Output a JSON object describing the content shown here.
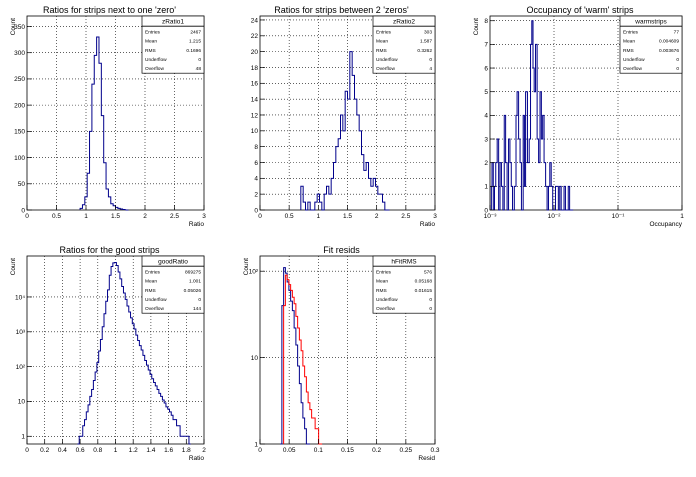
{
  "chart_data": [
    {
      "id": "p1",
      "type": "histogram",
      "title": "Ratios for strips next to one 'zero'",
      "xlabel": "Ratio",
      "ylabel": "Count",
      "xlim": [
        0,
        3
      ],
      "ylim": [
        0,
        370
      ],
      "xticks": [
        0,
        0.5,
        1,
        1.5,
        2,
        2.5,
        3
      ],
      "xticklabels": [
        "0",
        "0.5",
        "1",
        "1.5",
        "2",
        "2.5",
        "3"
      ],
      "yticks": [
        0,
        50,
        100,
        150,
        200,
        250,
        300,
        350
      ],
      "yticklabels": [
        "0",
        "50",
        "100",
        "150",
        "200",
        "250",
        "300",
        "350"
      ],
      "grid": true,
      "stats": {
        "name": "zRatio1",
        "rows": [
          {
            "label": "Entries",
            "value": "2467"
          },
          {
            "label": "Mean",
            "value": "1.215"
          },
          {
            "label": "RMS",
            "value": "0.1696"
          },
          {
            "label": "Underflow",
            "value": "0"
          },
          {
            "label": "Overflow",
            "value": "48"
          }
        ]
      },
      "series": [
        {
          "name": "zRatio1",
          "color": "#00008b",
          "x": [
            0.92,
            0.96,
            1.0,
            1.04,
            1.08,
            1.12,
            1.16,
            1.2,
            1.24,
            1.28,
            1.32,
            1.36,
            1.4,
            1.44,
            1.48,
            1.52,
            1.56,
            1.6,
            1.64,
            1.7
          ],
          "values": [
            3,
            10,
            25,
            70,
            150,
            240,
            295,
            330,
            280,
            180,
            90,
            40,
            25,
            12,
            8,
            5,
            3,
            2,
            1,
            0
          ]
        }
      ]
    },
    {
      "id": "p2",
      "type": "histogram",
      "title": "Ratios for strips between 2 'zeros'",
      "xlabel": "Ratio",
      "ylabel": "",
      "xlim": [
        0,
        3
      ],
      "ylim": [
        0,
        24.5
      ],
      "xticks": [
        0,
        0.5,
        1,
        1.5,
        2,
        2.5,
        3
      ],
      "xticklabels": [
        "0",
        "0.5",
        "1",
        "1.5",
        "2",
        "2.5",
        "3"
      ],
      "yticks": [
        0,
        2,
        4,
        6,
        8,
        10,
        12,
        14,
        16,
        18,
        20,
        22,
        24
      ],
      "yticklabels": [
        "0",
        "2",
        "4",
        "6",
        "8",
        "10",
        "12",
        "14",
        "16",
        "18",
        "20",
        "22",
        "24"
      ],
      "grid": true,
      "stats": {
        "name": "zRatio2",
        "rows": [
          {
            "label": "Entries",
            "value": "303"
          },
          {
            "label": "Mean",
            "value": "1.587"
          },
          {
            "label": "RMS",
            "value": "0.3262"
          },
          {
            "label": "Underflow",
            "value": "0"
          },
          {
            "label": "Overflow",
            "value": "4"
          }
        ]
      },
      "series": [
        {
          "name": "zRatio2",
          "color": "#00008b",
          "x": [
            0.72,
            0.76,
            0.8,
            0.84,
            0.88,
            0.92,
            0.96,
            1.0,
            1.04,
            1.08,
            1.12,
            1.16,
            1.2,
            1.24,
            1.28,
            1.32,
            1.36,
            1.4,
            1.44,
            1.48,
            1.52,
            1.56,
            1.6,
            1.64,
            1.68,
            1.72,
            1.76,
            1.8,
            1.84,
            1.88,
            1.92,
            1.96,
            2.0,
            2.04,
            2.08,
            2.12,
            2.16,
            2.2
          ],
          "values": [
            3,
            1,
            0,
            1,
            0,
            0,
            1,
            2,
            1,
            0,
            2,
            3,
            2,
            4,
            6,
            8,
            9,
            12,
            10,
            15,
            14,
            20,
            17,
            14,
            12,
            10,
            7,
            5,
            6,
            4,
            3,
            4,
            3,
            2,
            2,
            1,
            0,
            0
          ]
        }
      ]
    },
    {
      "id": "p3",
      "type": "histogram",
      "title": "Occupancy of 'warm' strips",
      "xlabel": "Occupancy",
      "ylabel": "Count",
      "xscale": "log",
      "xlim": [
        0.001,
        1
      ],
      "ylim": [
        0,
        8.2
      ],
      "xticks": [
        0.001,
        0.01,
        0.1,
        1
      ],
      "xticklabels": [
        "10⁻³",
        "10⁻²",
        "10⁻¹",
        "1"
      ],
      "yticks": [
        0,
        1,
        2,
        3,
        4,
        5,
        6,
        7,
        8
      ],
      "yticklabels": [
        "0",
        "1",
        "2",
        "3",
        "4",
        "5",
        "6",
        "7",
        "8"
      ],
      "grid": true,
      "stats": {
        "name": "warmstrips",
        "rows": [
          {
            "label": "Entries",
            "value": "77"
          },
          {
            "label": "Mean",
            "value": "0.004609"
          },
          {
            "label": "RMS",
            "value": "0.003676"
          },
          {
            "label": "Underflow",
            "value": "0"
          },
          {
            "label": "Overflow",
            "value": "0"
          }
        ]
      },
      "series": [
        {
          "name": "warmstrips",
          "color": "#00008b",
          "x": [
            0.00105,
            0.0011,
            0.00115,
            0.0012,
            0.00126,
            0.00133,
            0.0014,
            0.00147,
            0.00155,
            0.00163,
            0.00171,
            0.0018,
            0.0019,
            0.002,
            0.0021,
            0.0022,
            0.0023,
            0.0025,
            0.0026,
            0.0027,
            0.0029,
            0.003,
            0.0032,
            0.0034,
            0.0035,
            0.0037,
            0.004,
            0.0042,
            0.0044,
            0.0046,
            0.0048,
            0.005,
            0.0053,
            0.0056,
            0.0059,
            0.0062,
            0.0065,
            0.0068,
            0.0072,
            0.0076,
            0.008,
            0.0084,
            0.0088,
            0.0093,
            0.0098,
            0.0103,
            0.0108,
            0.0114,
            0.012,
            0.0126,
            0.0133,
            0.014,
            0.0147,
            0.0155,
            0.0163,
            0.0171,
            0.018,
            0.019
          ],
          "values": [
            1,
            2,
            0,
            1,
            2,
            3,
            0,
            2,
            1,
            0,
            4,
            2,
            0,
            3,
            2,
            1,
            0,
            1,
            4,
            5,
            3,
            2,
            0,
            4,
            1,
            5,
            2,
            3,
            7,
            8,
            6,
            5,
            7,
            3,
            2,
            5,
            3,
            4,
            2,
            1,
            0,
            1,
            2,
            1,
            0,
            0,
            1,
            1,
            0,
            1,
            0,
            0,
            1,
            0,
            0,
            1,
            0,
            0
          ]
        }
      ]
    },
    {
      "id": "p4",
      "type": "histogram",
      "title": "Ratios for the good strips",
      "xlabel": "Ratio",
      "ylabel": "Count",
      "yscale": "log",
      "xlim": [
        0,
        2
      ],
      "ylim": [
        0.6,
        150000
      ],
      "xticks": [
        0,
        0.2,
        0.4,
        0.6,
        0.8,
        1,
        1.2,
        1.4,
        1.6,
        1.8,
        2
      ],
      "xticklabels": [
        "0",
        "0.2",
        "0.4",
        "0.6",
        "0.8",
        "1",
        "1.2",
        "1.4",
        "1.6",
        "1.8",
        "2"
      ],
      "yticks": [
        1,
        10,
        100,
        1000,
        10000
      ],
      "yticklabels": [
        "1",
        "10",
        "10²",
        "10³",
        "10⁴"
      ],
      "grid": true,
      "stats": {
        "name": "goodRatio",
        "rows": [
          {
            "label": "Entries",
            "value": "869275"
          },
          {
            "label": "Mean",
            "value": "1.001"
          },
          {
            "label": "RMS",
            "value": "0.05026"
          },
          {
            "label": "Underflow",
            "value": "0"
          },
          {
            "label": "Overflow",
            "value": "144"
          }
        ]
      },
      "series": [
        {
          "name": "goodRatio",
          "color": "#00008b",
          "x": [
            0.58,
            0.6,
            0.62,
            0.64,
            0.66,
            0.68,
            0.7,
            0.72,
            0.74,
            0.76,
            0.78,
            0.8,
            0.82,
            0.84,
            0.86,
            0.88,
            0.9,
            0.92,
            0.94,
            0.96,
            0.98,
            1.0,
            1.02,
            1.04,
            1.06,
            1.08,
            1.1,
            1.12,
            1.14,
            1.16,
            1.18,
            1.2,
            1.22,
            1.24,
            1.26,
            1.28,
            1.3,
            1.32,
            1.34,
            1.36,
            1.38,
            1.4,
            1.42,
            1.44,
            1.46,
            1.48,
            1.5,
            1.52,
            1.54,
            1.56,
            1.58,
            1.6,
            1.62,
            1.64,
            1.66,
            1.68,
            1.7,
            1.72,
            1.74,
            1.76,
            1.78,
            1.8,
            1.82,
            1.84
          ],
          "values": [
            0.6,
            1,
            1,
            2,
            3,
            5,
            8,
            14,
            22,
            40,
            70,
            130,
            280,
            600,
            1400,
            3300,
            7500,
            16000,
            42000,
            75000,
            95000,
            98000,
            80000,
            52000,
            33000,
            20000,
            13000,
            8500,
            5500,
            3700,
            2500,
            1700,
            1200,
            800,
            560,
            400,
            300,
            210,
            150,
            110,
            80,
            60,
            45,
            35,
            28,
            22,
            17,
            14,
            11,
            9,
            7,
            6,
            5,
            4,
            3,
            3,
            2,
            2,
            1,
            1,
            1,
            1,
            1,
            0.6
          ]
        }
      ]
    },
    {
      "id": "p5",
      "type": "histogram",
      "title": "Fit resids",
      "xlabel": "Resid",
      "ylabel": "Count",
      "yscale": "log",
      "xlim": [
        0,
        0.3
      ],
      "ylim": [
        1,
        150
      ],
      "xticks": [
        0,
        0.05,
        0.1,
        0.15,
        0.2,
        0.25,
        0.3
      ],
      "xticklabels": [
        "0",
        "0.05",
        "0.1",
        "0.15",
        "0.2",
        "0.25",
        "0.3"
      ],
      "yticks": [
        1,
        10,
        100
      ],
      "yticklabels": [
        "1",
        "10",
        "10²"
      ],
      "grid": true,
      "stats": {
        "name": "hFitRMS",
        "rows": [
          {
            "label": "Entries",
            "value": "576"
          },
          {
            "label": "Mean",
            "value": "0.05168"
          },
          {
            "label": "RMS",
            "value": "0.01615"
          },
          {
            "label": "Underflow",
            "value": "0"
          },
          {
            "label": "Overflow",
            "value": "0"
          }
        ]
      },
      "series": [
        {
          "name": "hFitRMS",
          "color": "#00008b",
          "x": [
            0.036,
            0.039,
            0.042,
            0.045,
            0.048,
            0.051,
            0.054,
            0.057,
            0.06,
            0.063,
            0.066,
            0.069,
            0.072,
            0.075,
            0.078,
            0.081,
            0.084
          ],
          "values": [
            1,
            40,
            110,
            95,
            75,
            60,
            45,
            35,
            22,
            14,
            8,
            5,
            3,
            2,
            1.5,
            1,
            1
          ]
        },
        {
          "name": "",
          "color": "#ff0000",
          "x": [
            0.042,
            0.045,
            0.048,
            0.051,
            0.054,
            0.057,
            0.06,
            0.063,
            0.066,
            0.069,
            0.072,
            0.075,
            0.078,
            0.081,
            0.084,
            0.087,
            0.09,
            0.093,
            0.096,
            0.099,
            0.102,
            0.105
          ],
          "values": [
            40,
            90,
            80,
            70,
            60,
            50,
            42,
            30,
            22,
            16,
            12,
            8,
            6,
            4,
            3,
            2.5,
            2,
            2,
            1.5,
            1.5,
            1,
            1
          ]
        }
      ]
    }
  ]
}
